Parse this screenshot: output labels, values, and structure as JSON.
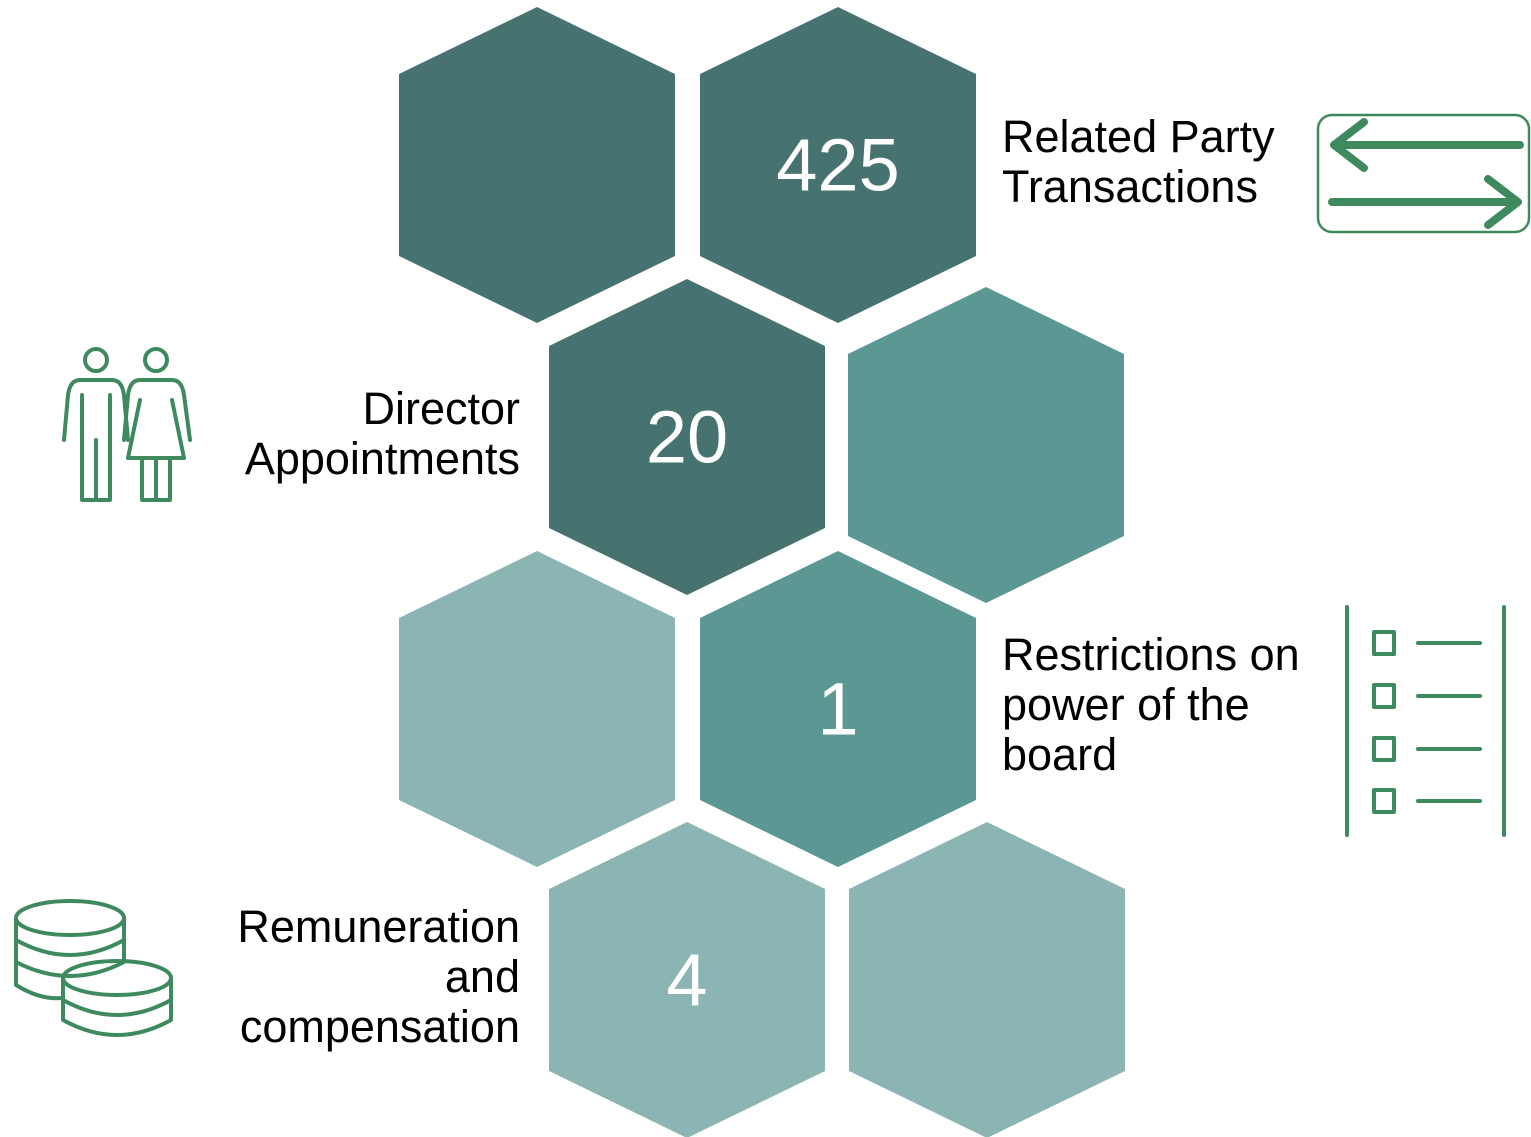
{
  "items": [
    {
      "value": "425",
      "label_lines": [
        "Related Party",
        "Transactions"
      ]
    },
    {
      "value": "20",
      "label_lines": [
        "Director",
        "Appointments"
      ]
    },
    {
      "value": "1",
      "label_lines": [
        "Restrictions on",
        "power of the",
        "board"
      ]
    },
    {
      "value": "4",
      "label_lines": [
        "Remuneration",
        "and",
        "compensation"
      ]
    }
  ]
}
